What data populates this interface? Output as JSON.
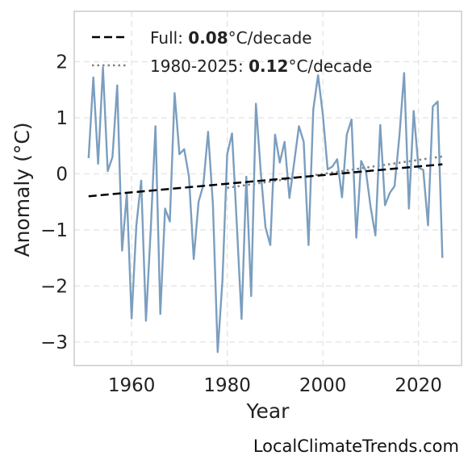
{
  "chart_data": {
    "type": "line",
    "xlabel": "Year",
    "ylabel": "Anomaly (°C)",
    "xlim": [
      1948,
      2029
    ],
    "ylim": [
      -3.42,
      2.9
    ],
    "xticks": [
      1960,
      1980,
      2000,
      2020
    ],
    "yticks": [
      -3,
      -2,
      -1,
      0,
      1,
      2
    ],
    "tick_labels_x": [
      "1960",
      "1980",
      "2000",
      "2020"
    ],
    "tick_labels_y": [
      "−3",
      "−2",
      "−1",
      "0",
      "1",
      "2"
    ],
    "grid": true,
    "legend_placement": "top-left",
    "series": [
      {
        "x": [
          1951,
          1952,
          1953,
          1954,
          1955,
          1956,
          1957,
          1958,
          1959,
          1960,
          1961,
          1962,
          1963,
          1964,
          1965,
          1966,
          1967,
          1968,
          1969,
          1970,
          1971,
          1972,
          1973,
          1974,
          1975,
          1976,
          1977,
          1978,
          1979,
          1980,
          1981,
          1982,
          1983,
          1984,
          1985,
          1986,
          1987,
          1988,
          1989,
          1990,
          1991,
          1992,
          1993,
          1994,
          1995,
          1996,
          1997,
          1998,
          1999,
          2000,
          2001,
          2002,
          2003,
          2004,
          2005,
          2006,
          2007,
          2008,
          2009,
          2010,
          2011,
          2012,
          2013,
          2014,
          2015,
          2016,
          2017,
          2018,
          2019,
          2020,
          2021,
          2022,
          2023,
          2024,
          2025
        ],
        "values": [
          0.28,
          1.72,
          0.18,
          1.9,
          0.05,
          0.3,
          1.58,
          -1.37,
          -0.35,
          -2.58,
          -0.92,
          -0.12,
          -2.62,
          -1.0,
          0.85,
          -2.5,
          -0.62,
          -0.85,
          1.44,
          0.35,
          0.44,
          -0.05,
          -1.52,
          -0.5,
          -0.2,
          0.75,
          -0.55,
          -3.18,
          -1.9,
          0.35,
          0.72,
          -0.9,
          -2.59,
          -0.05,
          -2.18,
          1.25,
          0.05,
          -0.95,
          -1.27,
          0.7,
          0.2,
          0.57,
          -0.43,
          0.2,
          0.85,
          0.57,
          -1.27,
          1.15,
          1.76,
          1.06,
          0.08,
          0.13,
          0.26,
          -0.42,
          0.7,
          0.97,
          -1.14,
          0.23,
          0.05,
          -0.6,
          -1.1,
          0.87,
          -0.56,
          -0.34,
          -0.22,
          0.67,
          1.8,
          -0.62,
          1.12,
          0.11,
          0.07,
          -0.92,
          1.2,
          1.29,
          -1.5
        ],
        "color": "#7b9ebf"
      }
    ],
    "trends": [
      {
        "label_prefix": "Full: ",
        "rate": "0.08",
        "unit": "°C/decade",
        "x": [
          1951,
          2025
        ],
        "y": [
          -0.4,
          0.17
        ],
        "style": "dashed",
        "color": "#000000"
      },
      {
        "label_prefix": "1980-2025: ",
        "rate": "0.12",
        "unit": "°C/decade",
        "x": [
          1980,
          2025
        ],
        "y": [
          -0.25,
          0.31
        ],
        "style": "dotted",
        "color": "#808080"
      }
    ]
  },
  "watermark": "LocalClimateTrends.com",
  "colors": {
    "grid": "#e2e2e2",
    "frame": "#cccccc"
  }
}
